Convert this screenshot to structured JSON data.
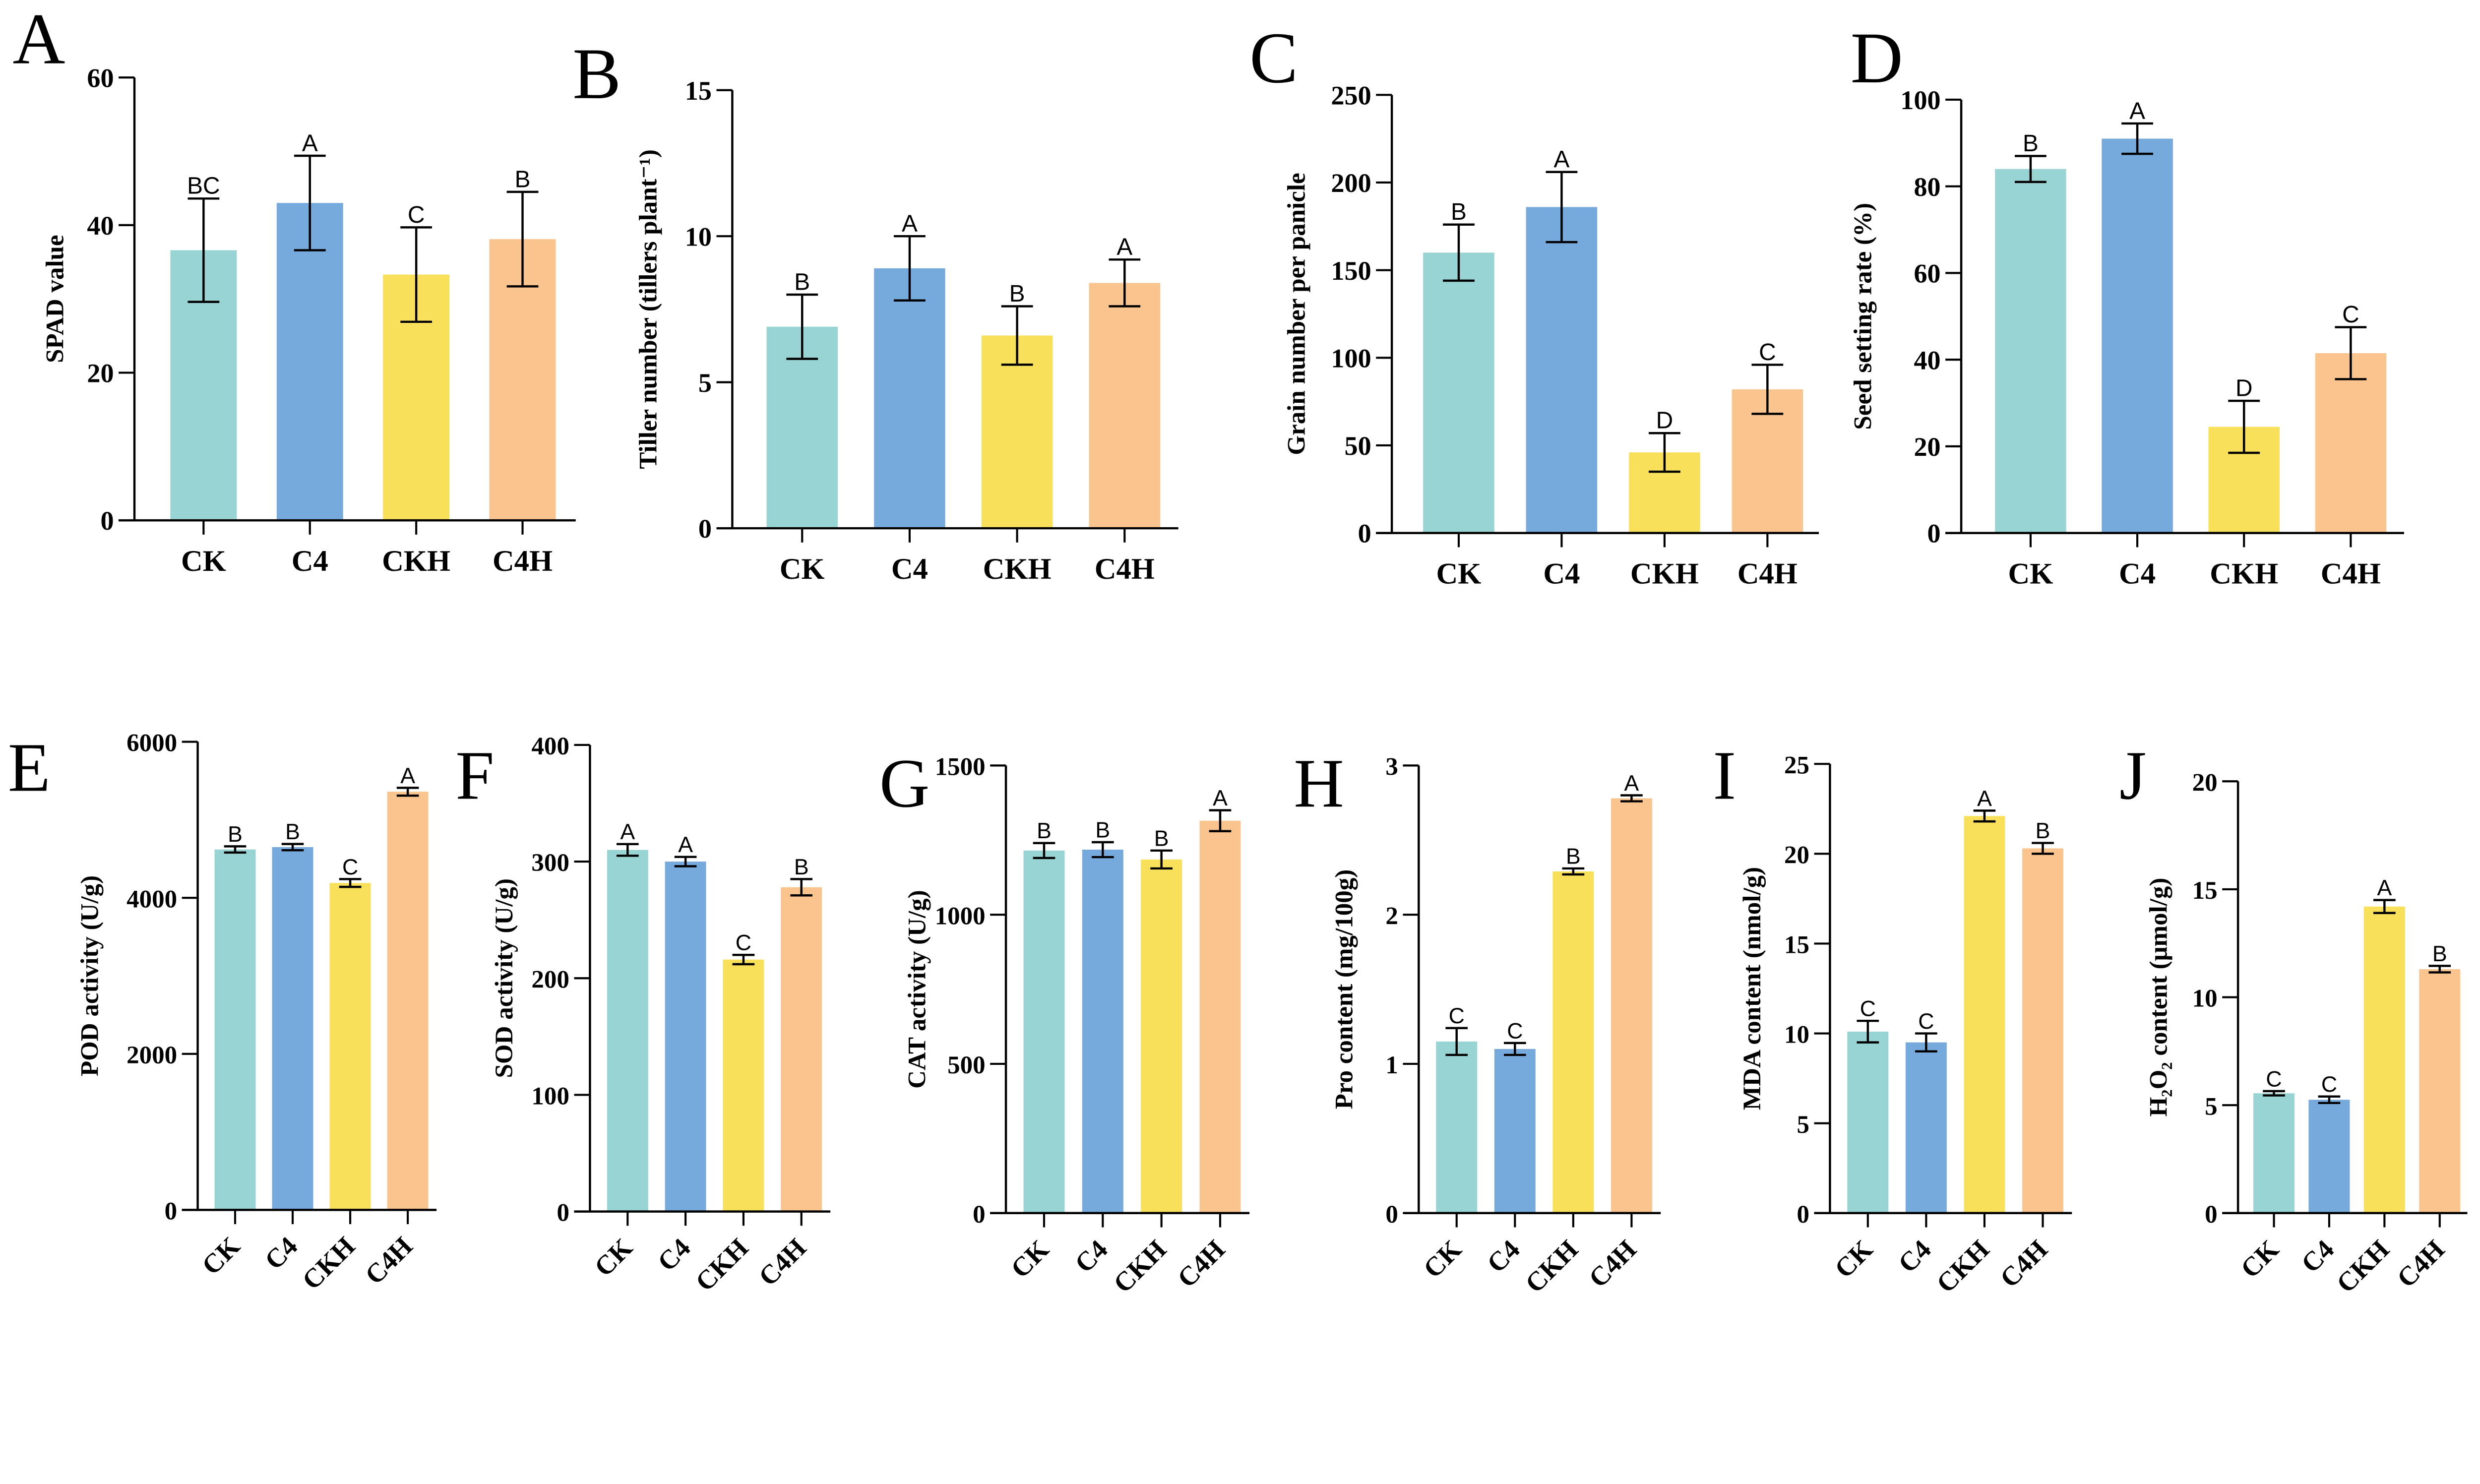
{
  "colors": {
    "CK": "#98D4D3",
    "C4": "#76A9DC",
    "CKH": "#F9E05B",
    "C4H": "#FAC48F",
    "axis": "#000000"
  },
  "chart_data": [
    {
      "type": "bar",
      "panel": "A",
      "ylabel": "SPAD value",
      "categories": [
        "CK",
        "C4",
        "CKH",
        "C4H"
      ],
      "values": [
        36.6,
        43,
        33.3,
        38.1
      ],
      "errors": [
        7,
        6.4,
        6.4,
        6.4
      ],
      "letters": [
        "BC",
        "A",
        "C",
        "B"
      ],
      "ylim": [
        0,
        60
      ],
      "yticks": [
        0,
        20,
        40,
        60
      ]
    },
    {
      "type": "bar",
      "panel": "B",
      "ylabel": "Tiller number (tillers plant⁻¹)",
      "categories": [
        "CK",
        "C4",
        "CKH",
        "C4H"
      ],
      "values": [
        6.9,
        8.9,
        6.6,
        8.4
      ],
      "errors": [
        1.1,
        1.1,
        1.0,
        0.8
      ],
      "letters": [
        "B",
        "A",
        "B",
        "A"
      ],
      "ylim": [
        0,
        15
      ],
      "yticks": [
        0,
        5,
        10,
        15
      ]
    },
    {
      "type": "bar",
      "panel": "C",
      "ylabel": "Grain number per panicle",
      "categories": [
        "CK",
        "C4",
        "CKH",
        "C4H"
      ],
      "values": [
        160,
        186,
        46,
        82
      ],
      "errors": [
        16,
        20,
        11,
        14
      ],
      "letters": [
        "B",
        "A",
        "D",
        "C"
      ],
      "ylim": [
        0,
        250
      ],
      "yticks": [
        0,
        50,
        100,
        150,
        200,
        250
      ]
    },
    {
      "type": "bar",
      "panel": "D",
      "ylabel": "Seed setting rate (%)",
      "categories": [
        "CK",
        "C4",
        "CKH",
        "C4H"
      ],
      "values": [
        84,
        91,
        24.5,
        41.5
      ],
      "errors": [
        3,
        3.5,
        6,
        6
      ],
      "letters": [
        "B",
        "A",
        "D",
        "C"
      ],
      "ylim": [
        0,
        100
      ],
      "yticks": [
        0,
        20,
        40,
        60,
        80,
        100
      ]
    },
    {
      "type": "bar",
      "panel": "E",
      "ylabel": "POD activity (U/g)",
      "categories": [
        "CK",
        "C4",
        "CKH",
        "C4H"
      ],
      "values": [
        4620,
        4650,
        4190,
        5360
      ],
      "errors": [
        40,
        40,
        50,
        50
      ],
      "letters": [
        "B",
        "B",
        "C",
        "A"
      ],
      "ylim": [
        0,
        6000
      ],
      "yticks": [
        0,
        2000,
        4000,
        6000
      ]
    },
    {
      "type": "bar",
      "panel": "F",
      "ylabel": "SOD activity (U/g)",
      "categories": [
        "CK",
        "C4",
        "CKH",
        "C4H"
      ],
      "values": [
        310,
        300,
        216,
        278
      ],
      "errors": [
        5,
        4,
        4,
        7
      ],
      "letters": [
        "A",
        "A",
        "C",
        "B"
      ],
      "ylim": [
        0,
        400
      ],
      "yticks": [
        0,
        100,
        200,
        300,
        400
      ]
    },
    {
      "type": "bar",
      "panel": "G",
      "ylabel": "CAT activity (U/g)",
      "categories": [
        "CK",
        "C4",
        "CKH",
        "C4H"
      ],
      "values": [
        1215,
        1218,
        1185,
        1315
      ],
      "errors": [
        25,
        25,
        30,
        35
      ],
      "letters": [
        "B",
        "B",
        "B",
        "A"
      ],
      "ylim": [
        0,
        1500
      ],
      "yticks": [
        0,
        500,
        1000,
        1500
      ]
    },
    {
      "type": "bar",
      "panel": "H",
      "ylabel": "Pro content (mg/100g)",
      "categories": [
        "CK",
        "C4",
        "CKH",
        "C4H"
      ],
      "values": [
        1.15,
        1.1,
        2.29,
        2.78
      ],
      "errors": [
        0.09,
        0.04,
        0.02,
        0.02
      ],
      "letters": [
        "C",
        "C",
        "B",
        "A"
      ],
      "ylim": [
        0,
        3
      ],
      "yticks": [
        0,
        1,
        2,
        3
      ]
    },
    {
      "type": "bar",
      "panel": "I",
      "ylabel": "MDA content (nmol/g)",
      "categories": [
        "CK",
        "C4",
        "CKH",
        "C4H"
      ],
      "values": [
        10.1,
        9.5,
        22.1,
        20.3
      ],
      "errors": [
        0.6,
        0.5,
        0.3,
        0.3
      ],
      "letters": [
        "C",
        "C",
        "A",
        "B"
      ],
      "ylim": [
        0,
        25
      ],
      "yticks": [
        0,
        5,
        10,
        15,
        20,
        25
      ]
    },
    {
      "type": "bar",
      "panel": "J",
      "ylabel": "H₂O₂ content (μmol/g)",
      "categories": [
        "CK",
        "C4",
        "CKH",
        "C4H"
      ],
      "values": [
        5.55,
        5.25,
        14.2,
        11.3
      ],
      "errors": [
        0.1,
        0.15,
        0.3,
        0.15
      ],
      "letters": [
        "C",
        "C",
        "A",
        "B"
      ],
      "ylim": [
        0,
        20
      ],
      "yticks": [
        0,
        5,
        10,
        15,
        20
      ]
    }
  ]
}
